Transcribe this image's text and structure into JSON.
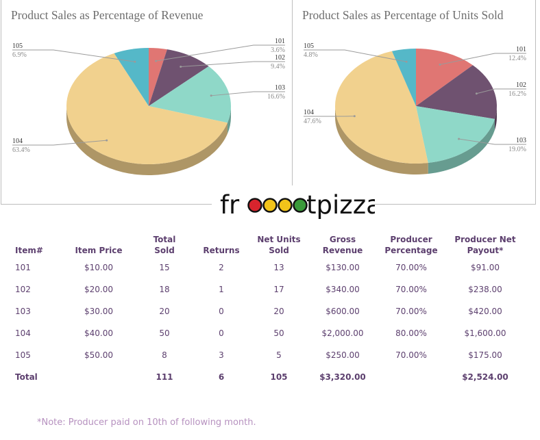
{
  "chart_data": [
    {
      "type": "pie",
      "title": "Product Sales as Percentage of Revenue",
      "slices": [
        {
          "label": "101",
          "value": 3.6,
          "display": "3.6%",
          "color": "#e07673"
        },
        {
          "label": "102",
          "value": 9.4,
          "display": "9.4%",
          "color": "#6f5270"
        },
        {
          "label": "103",
          "value": 16.6,
          "display": "16.6%",
          "color": "#8fd8c8"
        },
        {
          "label": "104",
          "value": 63.4,
          "display": "63.4%",
          "color": "#f1d18e"
        },
        {
          "label": "105",
          "value": 6.9,
          "display": "6.9%",
          "color": "#55b8c8"
        }
      ]
    },
    {
      "type": "pie",
      "title": "Product Sales as Percentage of Units Sold",
      "slices": [
        {
          "label": "101",
          "value": 12.4,
          "display": "12.4%",
          "color": "#e07673"
        },
        {
          "label": "102",
          "value": 16.2,
          "display": "16.2%",
          "color": "#6f5270"
        },
        {
          "label": "103",
          "value": 19.0,
          "display": "19.0%",
          "color": "#8fd8c8"
        },
        {
          "label": "104",
          "value": 47.6,
          "display": "47.6%",
          "color": "#f1d18e"
        },
        {
          "label": "105",
          "value": 4.8,
          "display": "4.8%",
          "color": "#55b8c8"
        }
      ]
    }
  ],
  "logo": {
    "text": "frooootpizza",
    "letters_before": "fr",
    "letters_after": "tpizza",
    "dot_colors": [
      "#d8242d",
      "#f2c41a",
      "#f2c41a",
      "#3a9a3a"
    ]
  },
  "table": {
    "headers": [
      "Item#",
      "Item Price",
      "Total\nSold",
      "Returns",
      "Net Units\nSold",
      "Gross\nRevenue",
      "Producer\nPercentage",
      "Producer Net\nPayout*"
    ],
    "rows": [
      [
        "101",
        "$10.00",
        "15",
        "2",
        "13",
        "$130.00",
        "70.00%",
        "$91.00"
      ],
      [
        "102",
        "$20.00",
        "18",
        "1",
        "17",
        "$340.00",
        "70.00%",
        "$238.00"
      ],
      [
        "103",
        "$30.00",
        "20",
        "0",
        "20",
        "$600.00",
        "70.00%",
        "$420.00"
      ],
      [
        "104",
        "$40.00",
        "50",
        "0",
        "50",
        "$2,000.00",
        "80.00%",
        "$1,600.00"
      ],
      [
        "105",
        "$50.00",
        "8",
        "3",
        "5",
        "$250.00",
        "70.00%",
        "$175.00"
      ]
    ],
    "total": [
      "Total",
      "",
      "111",
      "6",
      "105",
      "$3,320.00",
      "",
      "$2,524.00"
    ]
  },
  "footnote": "*Note: Producer paid on 10th of following month."
}
